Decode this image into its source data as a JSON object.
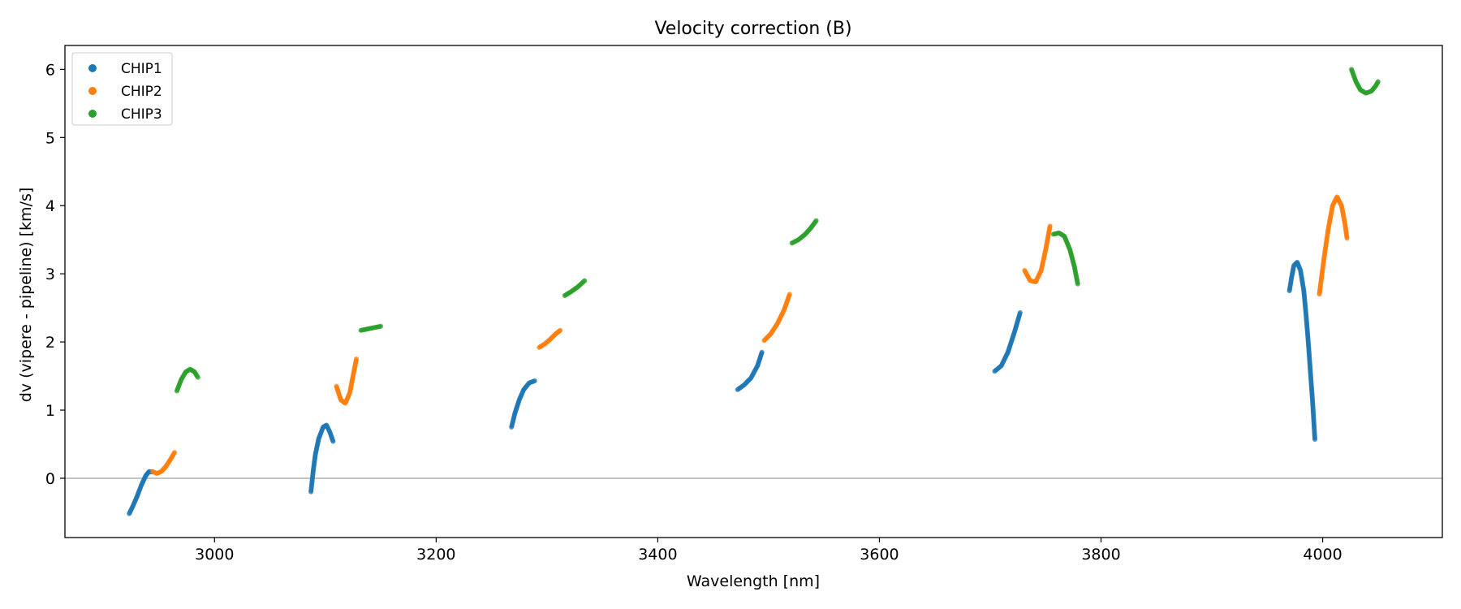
{
  "chart_data": {
    "type": "scatter",
    "title": "Velocity correction (B)",
    "xlabel": "Wavelength [nm]",
    "ylabel": "dv (vipere - pipeline) [km/s]",
    "xlim": [
      2865,
      4108
    ],
    "ylim": [
      -0.87,
      6.35
    ],
    "xticks": [
      3000,
      3200,
      3400,
      3600,
      3800,
      4000
    ],
    "yticks": [
      0,
      1,
      2,
      3,
      4,
      5,
      6
    ],
    "hline": 0,
    "grid": false,
    "legend_position": "top-left",
    "series": [
      {
        "name": "CHIP1",
        "color": "#1f77b4",
        "segments": [
          [
            [
              2923,
              -0.52
            ],
            [
              2926,
              -0.42
            ],
            [
              2930,
              -0.27
            ],
            [
              2934,
              -0.1
            ],
            [
              2938,
              0.04
            ],
            [
              2941,
              0.1
            ],
            [
              2944,
              0.09
            ]
          ],
          [
            [
              3087,
              -0.2
            ],
            [
              3089,
              0.1
            ],
            [
              3091,
              0.35
            ],
            [
              3094,
              0.58
            ],
            [
              3098,
              0.75
            ],
            [
              3101,
              0.78
            ],
            [
              3104,
              0.68
            ],
            [
              3107,
              0.54
            ]
          ],
          [
            [
              3268,
              0.75
            ],
            [
              3271,
              0.95
            ],
            [
              3275,
              1.15
            ],
            [
              3279,
              1.3
            ],
            [
              3284,
              1.4
            ],
            [
              3289,
              1.43
            ]
          ],
          [
            [
              3472,
              1.3
            ],
            [
              3478,
              1.37
            ],
            [
              3484,
              1.47
            ],
            [
              3490,
              1.65
            ],
            [
              3494,
              1.85
            ]
          ],
          [
            [
              3704,
              1.57
            ],
            [
              3710,
              1.65
            ],
            [
              3716,
              1.85
            ],
            [
              3722,
              2.15
            ],
            [
              3727,
              2.43
            ]
          ],
          [
            [
              3970,
              2.75
            ],
            [
              3972,
              2.95
            ],
            [
              3974,
              3.12
            ],
            [
              3977,
              3.17
            ],
            [
              3980,
              3.05
            ],
            [
              3983,
              2.75
            ],
            [
              3985,
              2.4
            ],
            [
              3987,
              2.0
            ],
            [
              3989,
              1.55
            ],
            [
              3991,
              1.1
            ],
            [
              3993,
              0.57
            ]
          ]
        ]
      },
      {
        "name": "CHIP2",
        "color": "#ff7f0e",
        "segments": [
          [
            [
              2944,
              0.1
            ],
            [
              2948,
              0.07
            ],
            [
              2952,
              0.1
            ],
            [
              2956,
              0.17
            ],
            [
              2960,
              0.27
            ],
            [
              2964,
              0.38
            ]
          ],
          [
            [
              3110,
              1.35
            ],
            [
              3114,
              1.15
            ],
            [
              3118,
              1.1
            ],
            [
              3122,
              1.25
            ],
            [
              3125,
              1.5
            ],
            [
              3128,
              1.75
            ]
          ],
          [
            [
              3293,
              1.92
            ],
            [
              3298,
              1.97
            ],
            [
              3303,
              2.04
            ],
            [
              3308,
              2.12
            ],
            [
              3312,
              2.17
            ]
          ],
          [
            [
              3496,
              2.02
            ],
            [
              3502,
              2.12
            ],
            [
              3508,
              2.27
            ],
            [
              3514,
              2.47
            ],
            [
              3519,
              2.7
            ]
          ],
          [
            [
              3731,
              3.05
            ],
            [
              3736,
              2.9
            ],
            [
              3741,
              2.88
            ],
            [
              3746,
              3.05
            ],
            [
              3750,
              3.35
            ],
            [
              3754,
              3.7
            ]
          ],
          [
            [
              3997,
              2.7
            ],
            [
              4001,
              3.2
            ],
            [
              4005,
              3.65
            ],
            [
              4009,
              4.0
            ],
            [
              4013,
              4.13
            ],
            [
              4017,
              4.0
            ],
            [
              4020,
              3.75
            ],
            [
              4022,
              3.52
            ]
          ]
        ]
      },
      {
        "name": "CHIP3",
        "color": "#2ca02c",
        "segments": [
          [
            [
              2966,
              1.28
            ],
            [
              2970,
              1.45
            ],
            [
              2974,
              1.56
            ],
            [
              2978,
              1.6
            ],
            [
              2982,
              1.56
            ],
            [
              2985,
              1.48
            ]
          ],
          [
            [
              3132,
              2.17
            ],
            [
              3138,
              2.19
            ],
            [
              3144,
              2.21
            ],
            [
              3150,
              2.23
            ]
          ],
          [
            [
              3316,
              2.68
            ],
            [
              3322,
              2.74
            ],
            [
              3328,
              2.81
            ],
            [
              3334,
              2.9
            ]
          ],
          [
            [
              3521,
              3.45
            ],
            [
              3527,
              3.5
            ],
            [
              3533,
              3.58
            ],
            [
              3538,
              3.67
            ],
            [
              3543,
              3.78
            ]
          ],
          [
            [
              3757,
              3.58
            ],
            [
              3762,
              3.6
            ],
            [
              3767,
              3.55
            ],
            [
              3772,
              3.35
            ],
            [
              3776,
              3.1
            ],
            [
              3779,
              2.85
            ]
          ],
          [
            [
              4026,
              6.0
            ],
            [
              4030,
              5.82
            ],
            [
              4034,
              5.7
            ],
            [
              4039,
              5.65
            ],
            [
              4044,
              5.68
            ],
            [
              4048,
              5.76
            ],
            [
              4050,
              5.82
            ]
          ]
        ]
      }
    ]
  }
}
